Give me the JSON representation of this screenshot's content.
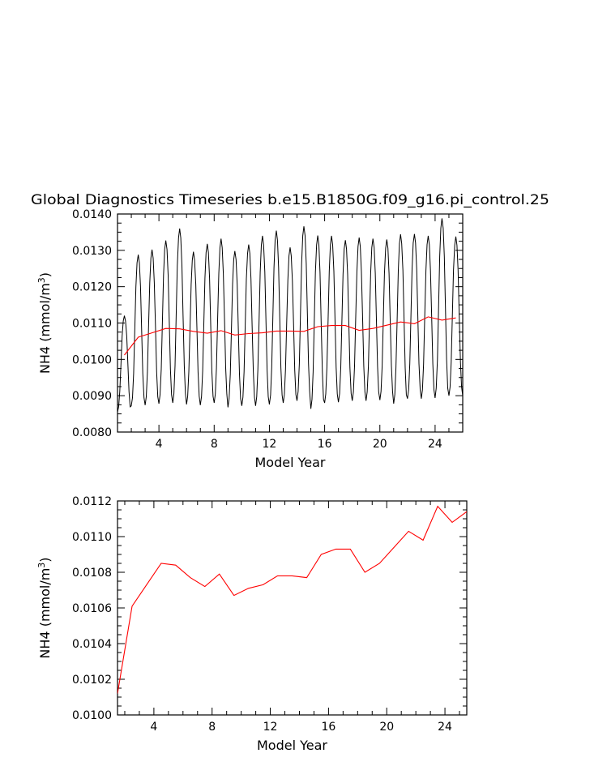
{
  "title": "Global Diagnostics Timeseries b.e15.B1850G.f09_g16.pi_control.25",
  "colors": {
    "monthly": "#000000",
    "annual": "#ff0000",
    "frame": "#000000"
  },
  "chart_data": [
    {
      "type": "line",
      "title": "Global Diagnostics Timeseries b.e15.B1850G.f09_g16.pi_control.25",
      "xlabel": "Model Year",
      "ylabel_main": "NH4 (mmol/m",
      "ylabel_sup": "3",
      "ylabel_close": ")",
      "xlim": [
        1,
        26
      ],
      "ylim": [
        0.008,
        0.014
      ],
      "xticks": [
        4,
        8,
        12,
        16,
        20,
        24
      ],
      "xtick_labels": [
        "4",
        "8",
        "12",
        "16",
        "20",
        "24"
      ],
      "yticks": [
        0.008,
        0.009,
        0.01,
        0.011,
        0.012,
        0.013,
        0.014
      ],
      "ytick_labels": [
        "0.0080",
        "0.0090",
        "0.0100",
        "0.0110",
        "0.0120",
        "0.0130",
        "0.0140"
      ],
      "grid": false,
      "legend": "none",
      "monthly_series": {
        "x_start": 1.0,
        "months_per_year": 12,
        "years": 25,
        "annual_max": [
          0.0112,
          0.01288,
          0.01302,
          0.01327,
          0.0136,
          0.01296,
          0.01318,
          0.01332,
          0.01298,
          0.01316,
          0.0134,
          0.01354,
          0.01308,
          0.01366,
          0.01341,
          0.0134,
          0.01328,
          0.01335,
          0.01332,
          0.0133,
          0.01344,
          0.01345,
          0.0134,
          0.01388,
          0.01338
        ],
        "annual_min": [
          0.00855,
          0.00872,
          0.00874,
          0.00878,
          0.0088,
          0.00876,
          0.00874,
          0.0088,
          0.00868,
          0.00872,
          0.00872,
          0.00876,
          0.0088,
          0.00886,
          0.00864,
          0.0088,
          0.00882,
          0.00886,
          0.00886,
          0.00888,
          0.00878,
          0.00892,
          0.00892,
          0.00894,
          0.009
        ]
      },
      "annual_series": {
        "x": [
          1.5,
          2.5,
          3.5,
          4.5,
          5.5,
          6.5,
          7.5,
          8.5,
          9.5,
          10.5,
          11.5,
          12.5,
          13.5,
          14.5,
          15.5,
          16.5,
          17.5,
          18.5,
          19.5,
          20.5,
          21.5,
          22.5,
          23.5,
          24.5,
          25.5
        ],
        "y": [
          0.01012,
          0.01061,
          0.01073,
          0.01085,
          0.01084,
          0.01077,
          0.01072,
          0.01079,
          0.01067,
          0.01071,
          0.01073,
          0.01078,
          0.01078,
          0.01077,
          0.0109,
          0.01093,
          0.01093,
          0.0108,
          0.01085,
          0.01094,
          0.01103,
          0.01098,
          0.01117,
          0.01108,
          0.01114
        ]
      }
    },
    {
      "type": "line",
      "xlabel": "Model Year",
      "ylabel_main": "NH4 (mmol/m",
      "ylabel_sup": "3",
      "ylabel_close": ")",
      "xlim": [
        1.5,
        25.5
      ],
      "ylim": [
        0.01,
        0.0112
      ],
      "xticks": [
        4,
        8,
        12,
        16,
        20,
        24
      ],
      "xtick_labels": [
        "4",
        "8",
        "12",
        "16",
        "20",
        "24"
      ],
      "yticks": [
        0.01,
        0.0102,
        0.0104,
        0.0106,
        0.0108,
        0.011,
        0.0112
      ],
      "ytick_labels": [
        "0.0100",
        "0.0102",
        "0.0104",
        "0.0106",
        "0.0108",
        "0.0110",
        "0.0112"
      ],
      "grid": false,
      "legend": "none",
      "annual_series": {
        "x": [
          1.5,
          2.5,
          3.5,
          4.5,
          5.5,
          6.5,
          7.5,
          8.5,
          9.5,
          10.5,
          11.5,
          12.5,
          13.5,
          14.5,
          15.5,
          16.5,
          17.5,
          18.5,
          19.5,
          20.5,
          21.5,
          22.5,
          23.5,
          24.5,
          25.5
        ],
        "y": [
          0.01012,
          0.01061,
          0.01073,
          0.01085,
          0.01084,
          0.01077,
          0.01072,
          0.01079,
          0.01067,
          0.01071,
          0.01073,
          0.01078,
          0.01078,
          0.01077,
          0.0109,
          0.01093,
          0.01093,
          0.0108,
          0.01085,
          0.01094,
          0.01103,
          0.01098,
          0.01117,
          0.01108,
          0.01114
        ]
      }
    }
  ]
}
